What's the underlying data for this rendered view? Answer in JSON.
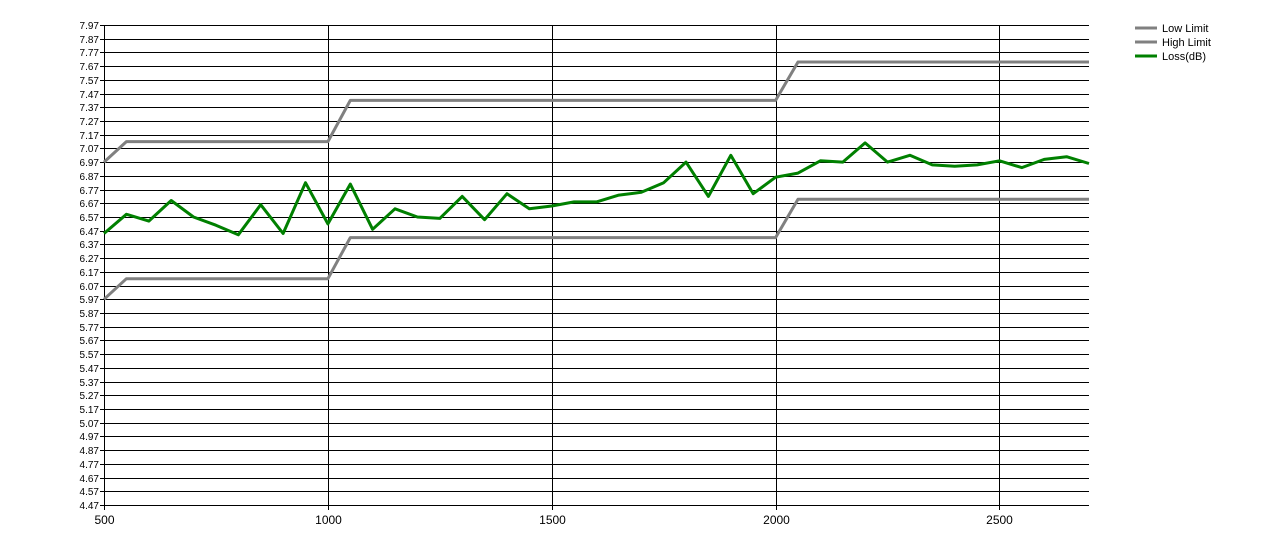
{
  "chart_data": {
    "type": "line",
    "title": "",
    "xlabel": "",
    "ylabel": "",
    "xlim": [
      500,
      2700
    ],
    "ylim": [
      4.47,
      7.97
    ],
    "x_ticks": [
      500,
      1000,
      1500,
      2000,
      2500
    ],
    "y_ticks": [
      "7.97",
      "7.87",
      "7.77",
      "7.67",
      "7.57",
      "7.47",
      "7.37",
      "7.27",
      "7.17",
      "7.07",
      "6.97",
      "6.87",
      "6.77",
      "6.67",
      "6.57",
      "6.47",
      "6.37",
      "6.27",
      "6.17",
      "6.07",
      "5.97",
      "5.87",
      "5.77",
      "5.67",
      "5.57",
      "5.47",
      "5.37",
      "5.27",
      "5.17",
      "5.07",
      "4.97",
      "4.87",
      "4.77",
      "4.67",
      "4.57",
      "4.47"
    ],
    "grid": true,
    "legend_position": "top-right",
    "series": [
      {
        "name": "Low Limit",
        "color": "#808080",
        "points": [
          [
            500,
            5.97
          ],
          [
            550,
            6.12
          ],
          [
            1000,
            6.12
          ],
          [
            1050,
            6.42
          ],
          [
            2000,
            6.42
          ],
          [
            2050,
            6.7
          ],
          [
            2700,
            6.7
          ]
        ]
      },
      {
        "name": "High Limit",
        "color": "#808080",
        "points": [
          [
            500,
            6.97
          ],
          [
            550,
            7.12
          ],
          [
            1000,
            7.12
          ],
          [
            1050,
            7.42
          ],
          [
            2000,
            7.42
          ],
          [
            2050,
            7.7
          ],
          [
            2700,
            7.7
          ]
        ]
      },
      {
        "name": "Loss(dB)",
        "color": "#008000",
        "points": [
          [
            500,
            6.45
          ],
          [
            550,
            6.59
          ],
          [
            600,
            6.54
          ],
          [
            650,
            6.69
          ],
          [
            700,
            6.57
          ],
          [
            750,
            6.51
          ],
          [
            800,
            6.44
          ],
          [
            850,
            6.66
          ],
          [
            900,
            6.45
          ],
          [
            950,
            6.82
          ],
          [
            1000,
            6.52
          ],
          [
            1050,
            6.81
          ],
          [
            1100,
            6.48
          ],
          [
            1150,
            6.63
          ],
          [
            1200,
            6.57
          ],
          [
            1250,
            6.56
          ],
          [
            1300,
            6.72
          ],
          [
            1350,
            6.55
          ],
          [
            1400,
            6.74
          ],
          [
            1450,
            6.63
          ],
          [
            1500,
            6.65
          ],
          [
            1550,
            6.68
          ],
          [
            1600,
            6.68
          ],
          [
            1650,
            6.73
          ],
          [
            1700,
            6.75
          ],
          [
            1750,
            6.82
          ],
          [
            1800,
            6.97
          ],
          [
            1850,
            6.72
          ],
          [
            1900,
            7.02
          ],
          [
            1950,
            6.74
          ],
          [
            2000,
            6.86
          ],
          [
            2050,
            6.89
          ],
          [
            2100,
            6.98
          ],
          [
            2150,
            6.97
          ],
          [
            2200,
            7.11
          ],
          [
            2250,
            6.97
          ],
          [
            2300,
            7.02
          ],
          [
            2350,
            6.95
          ],
          [
            2400,
            6.94
          ],
          [
            2450,
            6.95
          ],
          [
            2500,
            6.98
          ],
          [
            2550,
            6.93
          ],
          [
            2600,
            6.99
          ],
          [
            2650,
            7.01
          ],
          [
            2700,
            6.96
          ]
        ]
      }
    ]
  }
}
